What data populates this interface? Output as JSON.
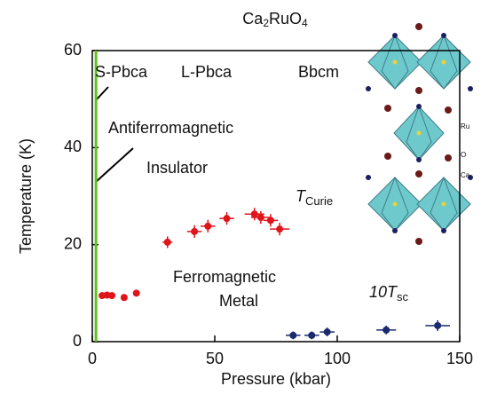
{
  "chart_data": {
    "type": "scatter",
    "title_parts": [
      "Ca",
      "2",
      "RuO",
      "4"
    ],
    "x_label": "Pressure (kbar)",
    "y_label": "Temperature (K)",
    "xlim": [
      0,
      150
    ],
    "xticks": [
      0,
      50,
      100,
      150
    ],
    "ylim": [
      0,
      60
    ],
    "yticks": [
      0,
      20,
      40,
      60
    ],
    "vertical_line": {
      "x": 1.5,
      "color": "#5cc21e"
    },
    "series": [
      {
        "color": "#e0141b",
        "x": [
          4,
          6,
          8,
          13,
          18
        ],
        "y": [
          9.5,
          9.6,
          9.5,
          9.1,
          10
        ]
      },
      {
        "color": "#e0141b",
        "x": [
          30.7,
          41.7,
          47.2,
          54.9,
          66.2,
          68.8,
          72.8,
          76.5
        ],
        "y": [
          20.5,
          22.7,
          23.8,
          25.4,
          26.3,
          25.6,
          25,
          23.2
        ],
        "xerr": [
          2,
          3,
          3,
          3,
          4,
          4,
          3,
          4
        ],
        "yerr": [
          1.2,
          1.3,
          1.3,
          1.3,
          1.3,
          1.3,
          1.3,
          1.3
        ]
      },
      {
        "color": "#1a2a6c",
        "x": [
          82,
          89.6,
          95.9,
          120,
          141
        ],
        "y": [
          1.3,
          1.3,
          2,
          2.4,
          3.3
        ],
        "xerr": [
          3,
          3,
          3,
          4,
          5
        ],
        "yerr": [
          0.8,
          0.8,
          0.9,
          0.9,
          1.1
        ]
      }
    ],
    "annotations": [
      {
        "text": "S-Pbca"
      },
      {
        "text": "L-Pbca"
      },
      {
        "text": "Bbcm"
      },
      {
        "text": "Antiferromagnetic"
      },
      {
        "text": "Insulator"
      },
      {
        "text": "T",
        "sub": "Curie"
      },
      {
        "text": "Ferromagnetic"
      },
      {
        "text": "Metal"
      },
      {
        "text": "10T",
        "sub": "sc"
      }
    ],
    "inset_labels": [
      "Ru",
      "O",
      "Ca"
    ]
  }
}
